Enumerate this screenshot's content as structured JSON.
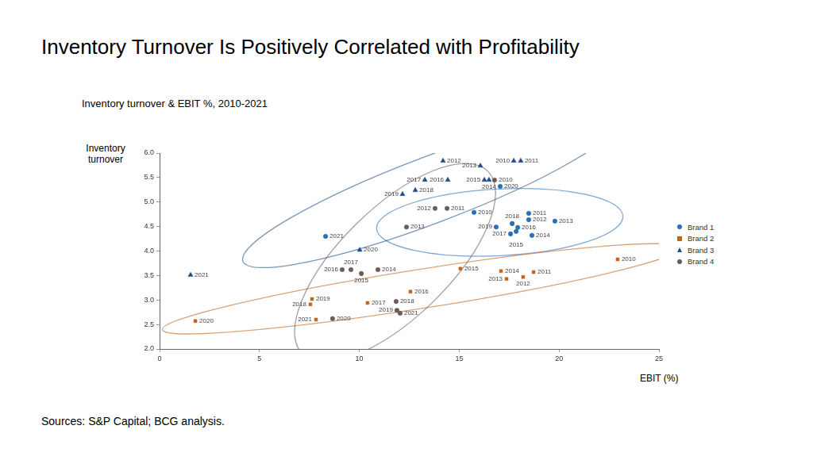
{
  "chart_data": {
    "type": "scatter",
    "title": "Inventory Turnover Is Positively Correlated with Profitability",
    "subtitle": "Inventory turnover & EBIT %, 2010-2021",
    "x_label": "EBIT (%)",
    "y_label": "Inventory turnover",
    "source": "Sources: S&P Capital; BCG analysis.",
    "xlim": [
      0,
      25
    ],
    "xticks": [
      0,
      5,
      10,
      15,
      20,
      25
    ],
    "ylim": [
      2,
      6
    ],
    "yticks": [
      {
        "value": 2,
        "label": "2.0"
      },
      2.5,
      {
        "value": 3,
        "label": "3.0"
      },
      3.5,
      {
        "value": 4,
        "label": "4.0"
      },
      4.5,
      {
        "value": 5,
        "label": "5.0"
      },
      5.5,
      {
        "value": 6,
        "label": "6.0"
      }
    ],
    "grid": false,
    "legend": "right",
    "series": [
      {
        "name": "Brand 1",
        "color": "#2a6eb5",
        "marker": "circle",
        "x": [
          15.74,
          18.48,
          18.48,
          19.79,
          18.64,
          17.85,
          17.93,
          17.57,
          17.65,
          16.85,
          17.05,
          8.31
        ],
        "values": [
          4.79,
          4.77,
          4.64,
          4.61,
          4.32,
          4.4,
          4.48,
          4.35,
          4.56,
          4.49,
          5.32,
          4.3
        ],
        "point_labels": [
          "2010",
          "2011",
          "2012",
          "2013",
          "2014",
          "2015",
          "2016",
          "2017",
          "2018",
          "2019",
          "2020",
          "2021"
        ]
      },
      {
        "name": "Brand 2",
        "color": "#c0651e",
        "marker": "square",
        "x": [
          22.93,
          18.72,
          18.2,
          17.37,
          17.09,
          15.06,
          12.56,
          10.41,
          7.55,
          7.63,
          1.79,
          7.83
        ],
        "values": [
          3.83,
          3.57,
          3.47,
          3.43,
          3.59,
          3.64,
          3.17,
          2.94,
          2.91,
          3.02,
          2.57,
          2.6
        ],
        "point_labels": [
          "2010",
          "2011",
          "2012",
          "2013",
          "2014",
          "2015",
          "2016",
          "2017",
          "2018",
          "2019",
          "2020",
          "2021"
        ]
      },
      {
        "name": "Brand 3",
        "color": "#1f4e8a",
        "marker": "triangle",
        "x": [
          17.73,
          18.08,
          14.19,
          16.06,
          16.49,
          16.26,
          14.43,
          13.28,
          12.8,
          12.16,
          10.02,
          1.55
        ],
        "values": [
          5.84,
          5.84,
          5.84,
          5.74,
          5.45,
          5.45,
          5.45,
          5.45,
          5.24,
          5.16,
          4.02,
          3.51
        ],
        "point_labels": [
          "2010",
          "2011",
          "2012",
          "2013",
          "2014",
          "2015",
          "2016",
          "2017",
          "2018",
          "2019",
          "2020",
          "2021"
        ]
      },
      {
        "name": "Brand 4",
        "color": "#6e5a5a",
        "marker": "circle",
        "x": [
          16.77,
          14.39,
          13.79,
          12.36,
          10.93,
          10.1,
          9.14,
          9.58,
          11.84,
          11.88,
          8.66,
          12.04
        ],
        "values": [
          5.45,
          4.87,
          4.87,
          4.49,
          3.62,
          3.54,
          3.62,
          3.62,
          2.97,
          2.79,
          2.62,
          2.73
        ],
        "point_labels": [
          "2010",
          "2011",
          "2012",
          "2013",
          "2014",
          "2015",
          "2016",
          "2017",
          "2018",
          "2019",
          "2020",
          "2021"
        ]
      }
    ]
  }
}
